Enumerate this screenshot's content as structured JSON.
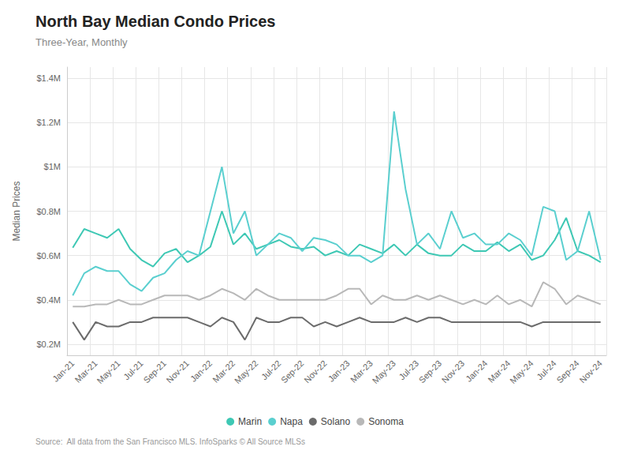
{
  "chart_data": {
    "type": "line",
    "title": "North Bay Median Condo Prices",
    "subtitle": "Three-Year, Monthly",
    "ylabel": "Median Prices",
    "source": "Source:  All data from the San Francisco MLS. InfoSparks © All Source MLSs",
    "categories": [
      "Jan-21",
      null,
      "Mar-21",
      null,
      "May-21",
      null,
      "Jul-21",
      null,
      "Sep-21",
      null,
      "Nov-21",
      null,
      "Jan-22",
      null,
      "Mar-22",
      null,
      "May-22",
      null,
      "Jul-22",
      null,
      "Sep-22",
      null,
      "Nov-22",
      null,
      "Jan-23",
      null,
      "Mar-23",
      null,
      "May-23",
      null,
      "Jul-23",
      null,
      "Sep-23",
      null,
      "Nov-23",
      null,
      "Jan-24",
      null,
      "Mar-24",
      null,
      "May-24",
      null,
      "Jul-24",
      null,
      "Sep-24",
      null,
      "Nov-24"
    ],
    "series": [
      {
        "name": "Marin",
        "color": "#3ec8b4",
        "values": [
          0.635,
          0.72,
          0.7,
          0.68,
          0.72,
          0.63,
          0.58,
          0.55,
          0.61,
          0.63,
          0.57,
          0.6,
          0.64,
          0.8,
          0.65,
          0.7,
          0.63,
          0.65,
          0.67,
          0.64,
          0.63,
          0.64,
          0.6,
          0.62,
          0.6,
          0.65,
          0.63,
          0.61,
          0.65,
          0.6,
          0.65,
          0.61,
          0.6,
          0.6,
          0.65,
          0.62,
          0.62,
          0.66,
          0.62,
          0.65,
          0.58,
          0.6,
          0.67,
          0.77,
          0.62,
          0.6,
          0.57
        ]
      },
      {
        "name": "Napa",
        "color": "#5acfcf",
        "values": [
          0.42,
          0.52,
          0.55,
          0.53,
          0.53,
          0.47,
          0.44,
          0.5,
          0.52,
          0.58,
          0.62,
          0.6,
          0.8,
          1.0,
          0.7,
          0.8,
          0.6,
          0.65,
          0.7,
          0.68,
          0.62,
          0.68,
          0.67,
          0.65,
          0.6,
          0.6,
          0.57,
          0.6,
          1.25,
          0.9,
          0.65,
          0.7,
          0.63,
          0.8,
          0.68,
          0.7,
          0.65,
          0.65,
          0.7,
          0.67,
          0.6,
          0.82,
          0.8,
          0.58,
          0.62,
          0.8,
          0.58
        ]
      },
      {
        "name": "Solano",
        "color": "#6b6b6b",
        "values": [
          0.3,
          0.22,
          0.3,
          0.28,
          0.28,
          0.3,
          0.3,
          0.32,
          0.32,
          0.32,
          0.32,
          0.3,
          0.28,
          0.32,
          0.3,
          0.22,
          0.32,
          0.3,
          0.3,
          0.32,
          0.32,
          0.28,
          0.3,
          0.28,
          0.3,
          0.32,
          0.3,
          0.3,
          0.3,
          0.32,
          0.3,
          0.32,
          0.32,
          0.3,
          0.3,
          0.3,
          0.3,
          0.3,
          0.3,
          0.3,
          0.28,
          0.3,
          0.3,
          0.3,
          0.3,
          0.3,
          0.3
        ]
      },
      {
        "name": "Sonoma",
        "color": "#b8b8b8",
        "values": [
          0.37,
          0.37,
          0.38,
          0.38,
          0.4,
          0.38,
          0.38,
          0.4,
          0.42,
          0.42,
          0.42,
          0.4,
          0.42,
          0.45,
          0.43,
          0.4,
          0.45,
          0.42,
          0.4,
          0.4,
          0.4,
          0.4,
          0.4,
          0.42,
          0.45,
          0.45,
          0.38,
          0.42,
          0.4,
          0.4,
          0.42,
          0.4,
          0.42,
          0.4,
          0.38,
          0.4,
          0.38,
          0.42,
          0.38,
          0.4,
          0.37,
          0.48,
          0.45,
          0.38,
          0.42,
          0.4,
          0.38
        ]
      }
    ],
    "ylim": [
      0.15,
      1.45
    ],
    "yticks": [
      {
        "value": 0.2,
        "label": "$0.2M"
      },
      {
        "value": 0.4,
        "label": "$0.4M"
      },
      {
        "value": 0.6,
        "label": "$0.6M"
      },
      {
        "value": 0.8,
        "label": "$0.8M"
      },
      {
        "value": 1.0,
        "label": "$1M"
      },
      {
        "value": 1.2,
        "label": "$1.2M"
      },
      {
        "value": 1.4,
        "label": "$1.4M"
      }
    ],
    "grid": true,
    "legend": "bottom"
  }
}
